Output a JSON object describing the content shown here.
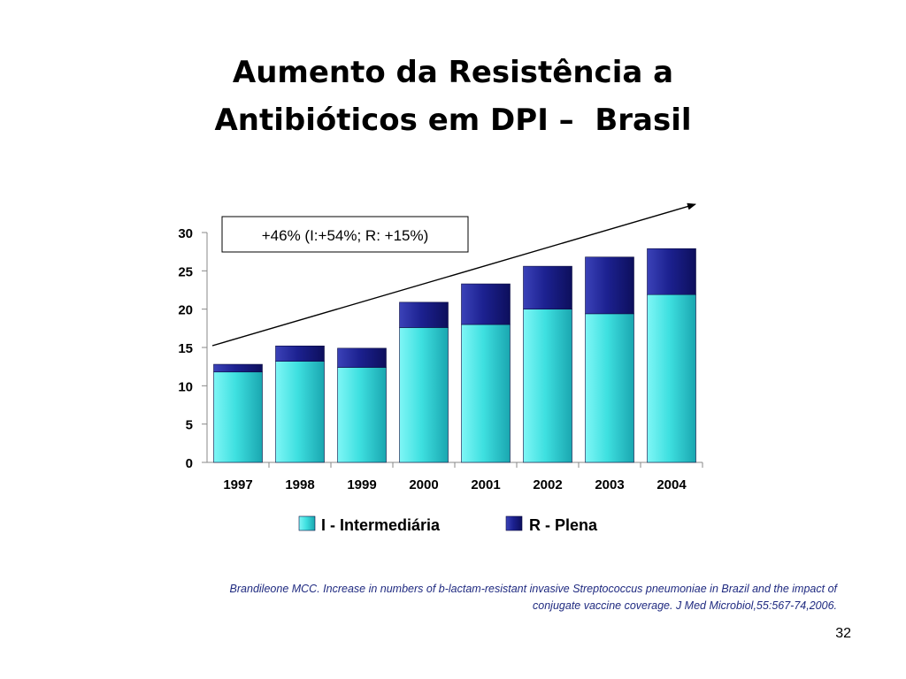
{
  "slide": {
    "title_line1": "Aumento da Resistência a",
    "title_line2": "Antibióticos em DPI –  Brasil",
    "citation_line1": "Brandileone MCC. Increase in numbers of b-lactam-resistant invasive Streptococcus pneumoniae in Brazil and the impact of",
    "citation_line2": "conjugate vaccine coverage. J Med Microbiol,55:567-74,2006.",
    "page_number": "32"
  },
  "chart_data": {
    "type": "bar",
    "stacked": true,
    "categories": [
      "1997",
      "1998",
      "1999",
      "2000",
      "2001",
      "2002",
      "2003",
      "2004"
    ],
    "series": [
      {
        "name": "I - Intermediária",
        "values": [
          11.8,
          13.2,
          12.4,
          17.6,
          18.0,
          20.0,
          19.4,
          21.9
        ],
        "color": "#3ee0e0"
      },
      {
        "name": "R - Plena",
        "values": [
          1.0,
          2.0,
          2.5,
          3.3,
          5.3,
          5.6,
          7.4,
          6.0
        ],
        "color": "#1c2190"
      }
    ],
    "ylim": [
      0,
      30
    ],
    "yticks": [
      "0",
      "5",
      "10",
      "15",
      "20",
      "25",
      "30"
    ],
    "annotation": "+46% (I:+54%; R: +15%)",
    "trend_arrow": true,
    "legend_position": "bottom",
    "grid": false
  }
}
